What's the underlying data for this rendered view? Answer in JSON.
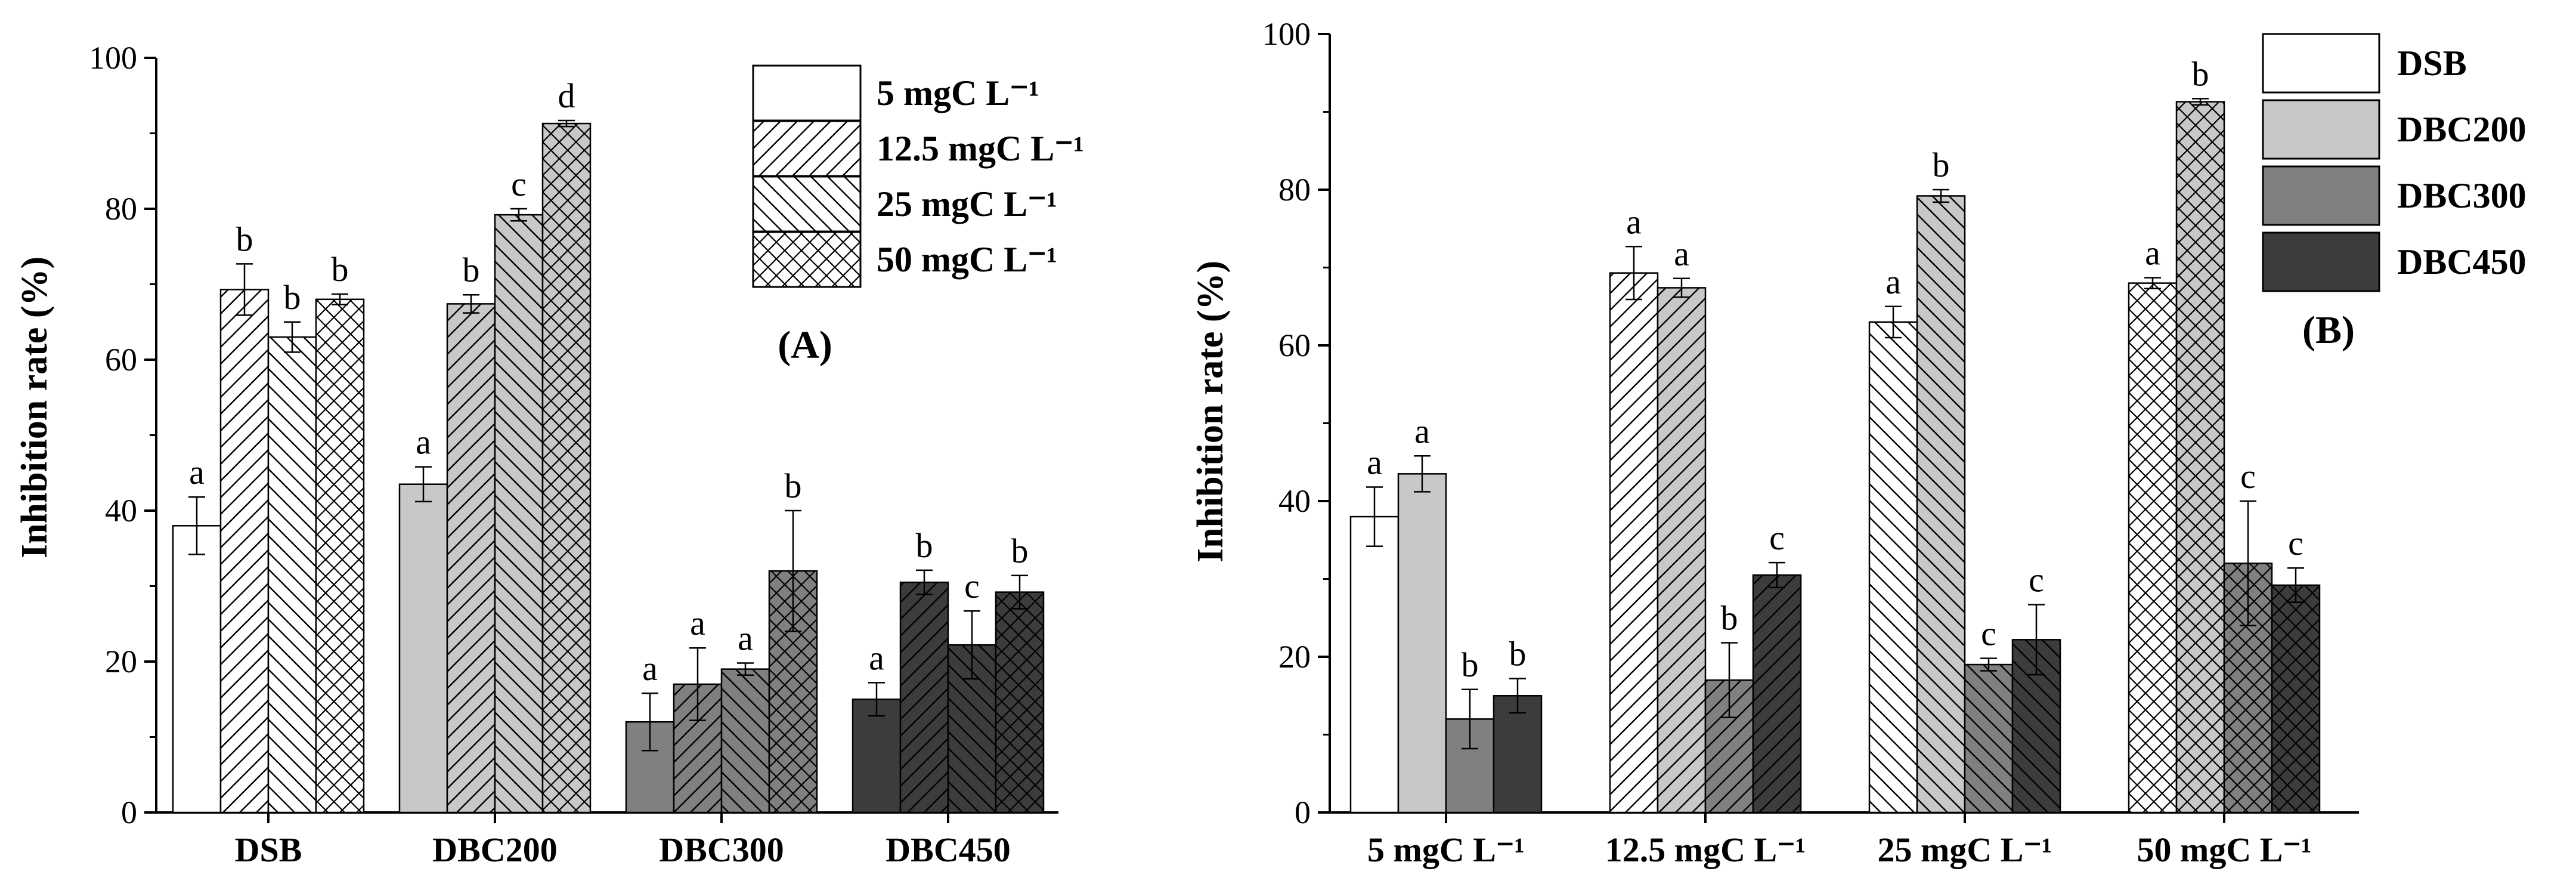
{
  "chart_data": [
    {
      "type": "bar",
      "panel_label": "(A)",
      "ylabel": "Inhibition rate (%)",
      "ylim": [
        0,
        100
      ],
      "yticks": [
        "0",
        "20",
        "40",
        "60",
        "80",
        "100"
      ],
      "categories": [
        "DSB",
        "DBC200",
        "DBC300",
        "DBC450"
      ],
      "series": [
        {
          "name": "5 mgC L⁻¹",
          "values": [
            38.0,
            43.5,
            12.0,
            15.0
          ],
          "errors": [
            3.8,
            2.3,
            3.8,
            2.2
          ],
          "letters": [
            "a",
            "a",
            "a",
            "a"
          ]
        },
        {
          "name": "12.5 mgC L⁻¹",
          "values": [
            69.3,
            67.4,
            17.0,
            30.5
          ],
          "errors": [
            3.4,
            1.2,
            4.8,
            1.6
          ],
          "letters": [
            "b",
            "b",
            "a",
            "b"
          ]
        },
        {
          "name": "25 mgC L⁻¹",
          "values": [
            63.0,
            79.2,
            19.0,
            22.2
          ],
          "errors": [
            2.0,
            0.8,
            0.8,
            4.5
          ],
          "letters": [
            "b",
            "c",
            "a",
            "c"
          ]
        },
        {
          "name": "50 mgC L⁻¹",
          "values": [
            68.0,
            91.3,
            32.0,
            29.2
          ],
          "errors": [
            0.7,
            0.4,
            8.0,
            2.2
          ],
          "letters": [
            "b",
            "d",
            "b",
            "b"
          ]
        }
      ],
      "legend_position": "top-right",
      "grid": false
    },
    {
      "type": "bar",
      "panel_label": "(B)",
      "ylabel": "Inhibition rate (%)",
      "ylim": [
        0,
        100
      ],
      "yticks": [
        "0",
        "20",
        "40",
        "60",
        "80",
        "100"
      ],
      "categories": [
        "5 mgC L⁻¹",
        "12.5 mgC L⁻¹",
        "25 mgC L⁻¹",
        "50 mgC L⁻¹"
      ],
      "series": [
        {
          "name": "DSB",
          "values": [
            38.0,
            69.3,
            63.0,
            68.0
          ],
          "errors": [
            3.8,
            3.4,
            2.0,
            0.7
          ],
          "letters": [
            "a",
            "a",
            "a",
            "a"
          ]
        },
        {
          "name": "DBC200",
          "values": [
            43.5,
            67.4,
            79.2,
            91.3
          ],
          "errors": [
            2.3,
            1.2,
            0.8,
            0.4
          ],
          "letters": [
            "a",
            "a",
            "b",
            "b"
          ]
        },
        {
          "name": "DBC300",
          "values": [
            12.0,
            17.0,
            19.0,
            32.0
          ],
          "errors": [
            3.8,
            4.8,
            0.8,
            8.0
          ],
          "letters": [
            "b",
            "b",
            "c",
            "c"
          ]
        },
        {
          "name": "DBC450",
          "values": [
            15.0,
            30.5,
            22.2,
            29.2
          ],
          "errors": [
            2.2,
            1.6,
            4.5,
            2.2
          ],
          "letters": [
            "b",
            "c",
            "c",
            "c"
          ]
        }
      ],
      "legend_position": "top-right",
      "grid": false
    }
  ],
  "colors": {
    "DSB": "#ffffff",
    "DBC200": "#c8c8c8",
    "DBC300": "#808080",
    "DBC450": "#3c3c3c"
  },
  "patterns": {
    "5 mgC L⁻¹": "none",
    "12.5 mgC L⁻¹": "forward-hatch",
    "25 mgC L⁻¹": "backward-hatch",
    "50 mgC L⁻¹": "cross-hatch"
  }
}
